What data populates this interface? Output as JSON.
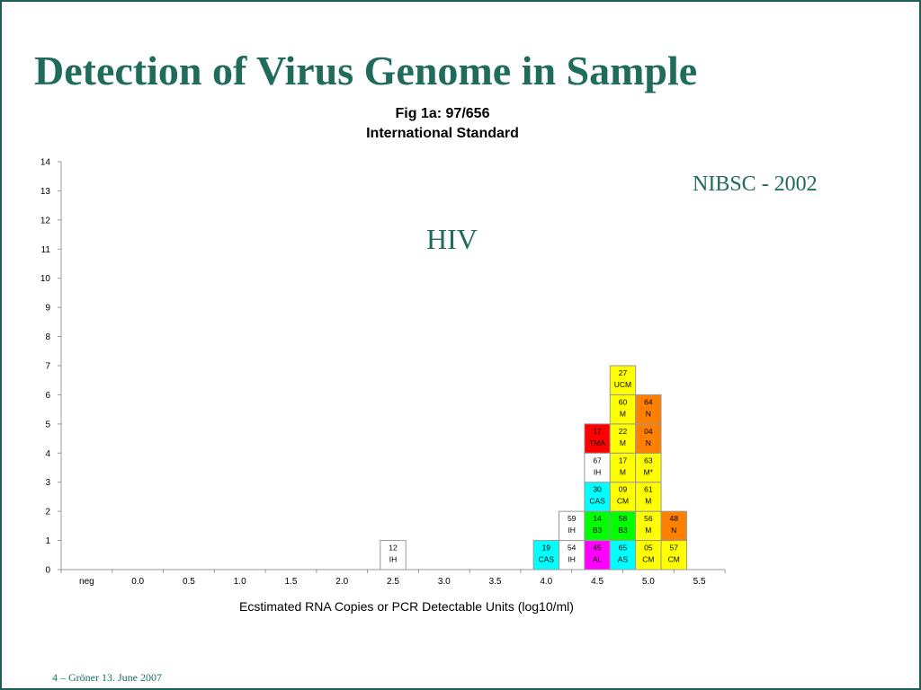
{
  "slide": {
    "title": "Detection of Virus Genome in Sample",
    "annotation_nibsc": "NIBSC - 2002",
    "annotation_virus": "HIV",
    "footer": "4 – Gröner 13. June 2007"
  },
  "colors": {
    "theme": "#1f6b5c",
    "white": "#ffffff",
    "yellow": "#ffff00",
    "orange": "#ff8000",
    "red": "#ff0000",
    "cyan": "#00ffff",
    "green": "#00ff00",
    "magenta": "#ff00ff"
  },
  "chart_data": {
    "type": "bar",
    "title_lines": [
      "Fig 1a: 97/656",
      "International Standard"
    ],
    "xlabel": "Ecstimated RNA Copies or PCR Detectable Units (log10/ml)",
    "ylabel": "",
    "ylim": [
      0,
      14
    ],
    "yticks": [
      0,
      1,
      2,
      3,
      4,
      5,
      6,
      7,
      8,
      9,
      10,
      11,
      12,
      13,
      14
    ],
    "categories": [
      "neg",
      "0.0",
      "0.5",
      "1.0",
      "1.5",
      "2.0",
      "2.5",
      "3.0",
      "3.5",
      "4.0",
      "4.5",
      "5.0",
      "5.5"
    ],
    "grid": false,
    "legend": "none",
    "stacked_boxes": [
      {
        "x": 2.5,
        "level": 1,
        "code": "12",
        "method": "IH",
        "color": "white"
      },
      {
        "x": 4.0,
        "level": 1,
        "code": "19",
        "method": "CAS",
        "color": "cyan"
      },
      {
        "x": 4.25,
        "level": 1,
        "code": "54",
        "method": "IH",
        "color": "white"
      },
      {
        "x": 4.25,
        "level": 2,
        "code": "59",
        "method": "IH",
        "color": "white"
      },
      {
        "x": 4.5,
        "level": 1,
        "code": "45",
        "method": "AL",
        "color": "magenta"
      },
      {
        "x": 4.5,
        "level": 2,
        "code": "14",
        "method": "B3",
        "color": "green"
      },
      {
        "x": 4.5,
        "level": 3,
        "code": "30",
        "method": "CAS",
        "color": "cyan"
      },
      {
        "x": 4.5,
        "level": 4,
        "code": "67",
        "method": "IH",
        "color": "white"
      },
      {
        "x": 4.5,
        "level": 5,
        "code": "17",
        "method": "TMA",
        "color": "red"
      },
      {
        "x": 4.75,
        "level": 1,
        "code": "65",
        "method": "AS",
        "color": "cyan"
      },
      {
        "x": 4.75,
        "level": 2,
        "code": "58",
        "method": "B3",
        "color": "green"
      },
      {
        "x": 4.75,
        "level": 3,
        "code": "09",
        "method": "CM",
        "color": "yellow"
      },
      {
        "x": 4.75,
        "level": 4,
        "code": "17",
        "method": "M",
        "color": "yellow"
      },
      {
        "x": 4.75,
        "level": 5,
        "code": "22",
        "method": "M",
        "color": "yellow"
      },
      {
        "x": 4.75,
        "level": 6,
        "code": "60",
        "method": "M",
        "color": "yellow"
      },
      {
        "x": 4.75,
        "level": 7,
        "code": "27",
        "method": "UCM",
        "color": "yellow"
      },
      {
        "x": 5.0,
        "level": 1,
        "code": "05",
        "method": "CM",
        "color": "yellow"
      },
      {
        "x": 5.0,
        "level": 2,
        "code": "56",
        "method": "M",
        "color": "yellow"
      },
      {
        "x": 5.0,
        "level": 3,
        "code": "61",
        "method": "M",
        "color": "yellow"
      },
      {
        "x": 5.0,
        "level": 4,
        "code": "63",
        "method": "M*",
        "color": "yellow"
      },
      {
        "x": 5.0,
        "level": 5,
        "code": "04",
        "method": "N",
        "color": "orange"
      },
      {
        "x": 5.0,
        "level": 6,
        "code": "64",
        "method": "N",
        "color": "orange"
      },
      {
        "x": 5.25,
        "level": 1,
        "code": "57",
        "method": "CM",
        "color": "yellow"
      },
      {
        "x": 5.25,
        "level": 2,
        "code": "48",
        "method": "N",
        "color": "orange"
      }
    ]
  }
}
